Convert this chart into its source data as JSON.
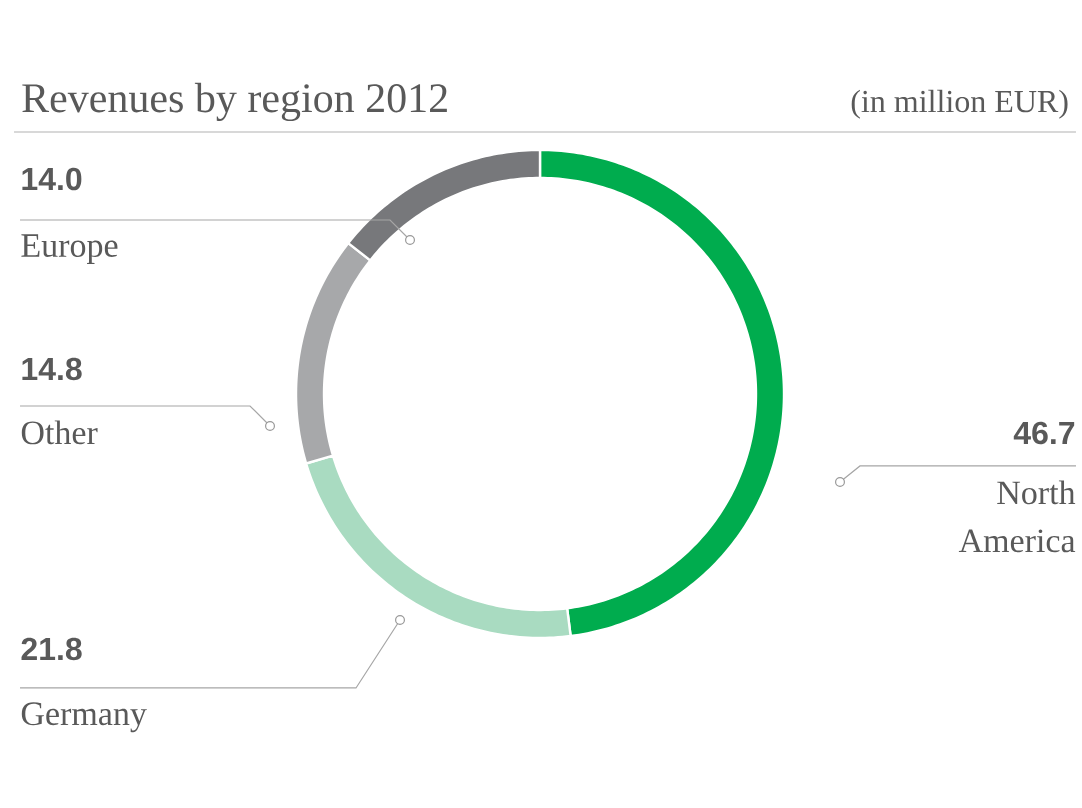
{
  "chart_data": {
    "type": "donut",
    "title": "Revenues by region 2012",
    "subtitle": "(in million EUR)",
    "categories": [
      "North America",
      "Germany",
      "Other",
      "Europe"
    ],
    "values": [
      46.7,
      21.8,
      14.8,
      14.0
    ],
    "colors": [
      "#00ac4e",
      "#a9dbc1",
      "#a7a8aa",
      "#77787b"
    ],
    "value_labels": [
      "46.7",
      "21.8",
      "14.8",
      "14.0"
    ]
  }
}
